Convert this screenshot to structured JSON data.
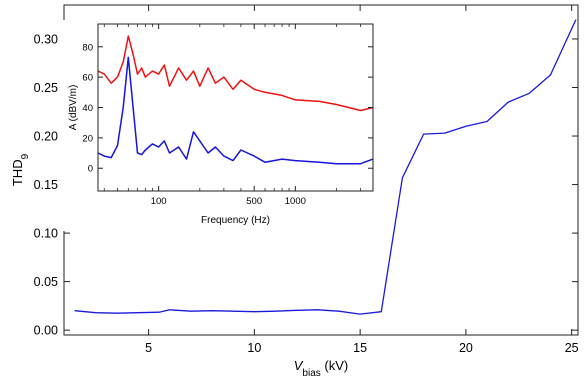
{
  "chart_data": [
    {
      "type": "line",
      "title": "",
      "xlabel": {
        "main": "V",
        "sub": "bias",
        "unit": " (kV)"
      },
      "ylabel": {
        "main": "THD",
        "sub": "9"
      },
      "xlim": [
        1,
        25.3
      ],
      "ylim": [
        -0.005,
        0.335
      ],
      "xticks": [
        5,
        10,
        15,
        20,
        25
      ],
      "yticks": [
        0.0,
        0.05,
        0.1,
        0.15,
        0.2,
        0.25,
        0.3
      ],
      "ytick_labels": [
        "0.00",
        "0.05",
        "0.10",
        "0.15",
        "0.20",
        "0.25",
        "0.30"
      ],
      "grid": false,
      "series": [
        {
          "color": "#1a1adc",
          "x": [
            1.5,
            2.5,
            3.5,
            4.5,
            5.5,
            6,
            7,
            8,
            9,
            10,
            11,
            12,
            13,
            14,
            15,
            16,
            17,
            18,
            19,
            20,
            21,
            22,
            23,
            24,
            25.2
          ],
          "y": [
            0.02,
            0.018,
            0.0175,
            0.018,
            0.0185,
            0.021,
            0.0195,
            0.02,
            0.0195,
            0.019,
            0.0195,
            0.0205,
            0.021,
            0.0195,
            0.0165,
            0.019,
            0.157,
            0.202,
            0.203,
            0.21,
            0.215,
            0.235,
            0.244,
            0.263,
            0.32
          ]
        }
      ]
    },
    {
      "type": "line",
      "inset": true,
      "title": "",
      "xlabel": "Frequency (Hz)",
      "ylabel": "A (dBV/m)",
      "xscale": "log",
      "xlim": [
        36,
        3700
      ],
      "ylim": [
        -15,
        95
      ],
      "xticks": [
        100,
        500,
        1000
      ],
      "xtick_labels": [
        "100",
        "500",
        "1000"
      ],
      "yticks": [
        0,
        20,
        40,
        60,
        80
      ],
      "grid": false,
      "series": [
        {
          "color": "#ee1111",
          "x": [
            36,
            40,
            45,
            50,
            55,
            60,
            65,
            70,
            75,
            80,
            90,
            100,
            110,
            120,
            140,
            160,
            180,
            200,
            230,
            260,
            300,
            350,
            400,
            500,
            600,
            800,
            1000,
            1500,
            2000,
            3000,
            3700
          ],
          "y": [
            64,
            62,
            56,
            60,
            70,
            87,
            75,
            62,
            66,
            60,
            64,
            62,
            68,
            54,
            66,
            58,
            64,
            54,
            66,
            56,
            60,
            52,
            58,
            52,
            50,
            48,
            45,
            44,
            42,
            38,
            40
          ]
        },
        {
          "color": "#1515dd",
          "x": [
            36,
            40,
            45,
            50,
            55,
            60,
            65,
            70,
            75,
            80,
            90,
            100,
            110,
            120,
            140,
            160,
            180,
            200,
            230,
            260,
            300,
            350,
            400,
            500,
            600,
            800,
            1000,
            1500,
            2000,
            3000,
            3700
          ],
          "y": [
            10,
            8,
            7,
            15,
            40,
            73,
            40,
            10,
            9,
            12,
            16,
            14,
            18,
            10,
            14,
            6,
            24,
            18,
            10,
            14,
            8,
            5,
            12,
            8,
            4,
            6,
            5,
            4,
            3,
            3,
            6
          ]
        }
      ]
    }
  ]
}
